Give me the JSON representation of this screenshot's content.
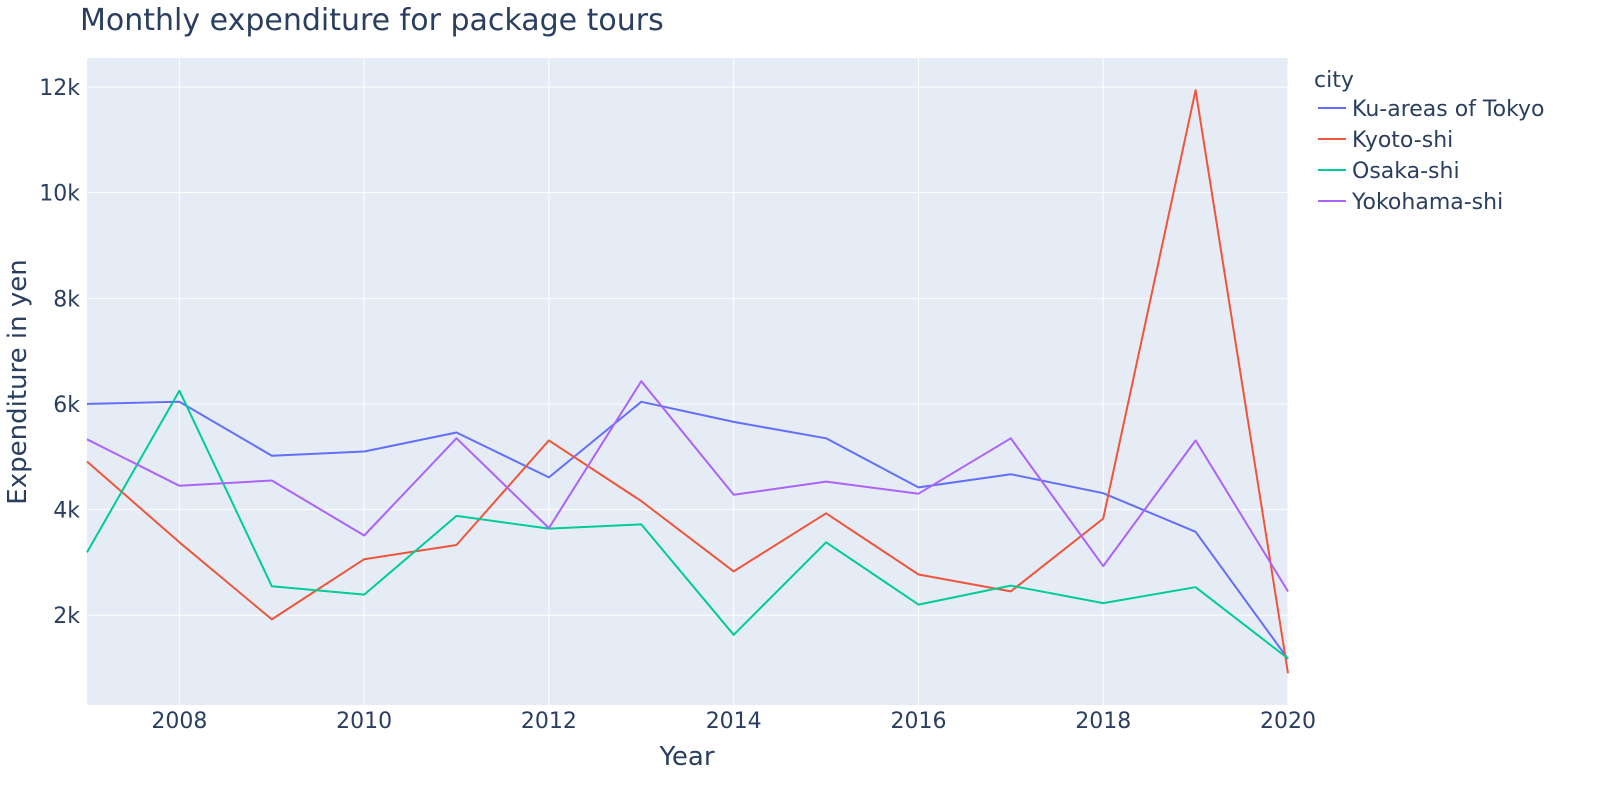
{
  "chart_data": {
    "type": "line",
    "title": "Monthly expenditure for package tours",
    "xlabel": "Year",
    "ylabel": "Expenditure in yen",
    "legend_title": "city",
    "legend_placement": "top-right outside",
    "xlim": [
      2007,
      2020
    ],
    "ylim": [
      300,
      12550
    ],
    "x_ticks": [
      2008,
      2010,
      2012,
      2014,
      2016,
      2018,
      2020
    ],
    "y_ticks": [
      2000,
      4000,
      6000,
      8000,
      10000,
      12000
    ],
    "y_tick_labels": [
      "2k",
      "4k",
      "6k",
      "8k",
      "10k",
      "12k"
    ],
    "grid": true,
    "plot_bgcolor": "#e5ecf6",
    "x": [
      2007,
      2008,
      2009,
      2010,
      2011,
      2012,
      2013,
      2014,
      2015,
      2016,
      2017,
      2018,
      2019,
      2020
    ],
    "series": [
      {
        "name": "Ku-areas of Tokyo",
        "color": "#636efa",
        "values": [
          6000,
          6040,
          5020,
          5100,
          5460,
          4610,
          6040,
          5660,
          5350,
          4420,
          4670,
          4310,
          3580,
          1170
        ]
      },
      {
        "name": "Kyoto-shi",
        "color": "#ef553b",
        "values": [
          4910,
          3380,
          1920,
          3060,
          3330,
          5310,
          4160,
          2830,
          3930,
          2770,
          2450,
          3830,
          11940,
          900
        ]
      },
      {
        "name": "Osaka-shi",
        "color": "#00cc96",
        "values": [
          3190,
          6250,
          2550,
          2390,
          3880,
          3640,
          3720,
          1630,
          3380,
          2200,
          2560,
          2230,
          2530,
          1180
        ]
      },
      {
        "name": "Yokohama-shi",
        "color": "#ab63fa",
        "values": [
          5330,
          4450,
          4550,
          3510,
          5350,
          3650,
          6430,
          4280,
          4530,
          4300,
          5350,
          2930,
          5310,
          2450
        ]
      }
    ]
  }
}
